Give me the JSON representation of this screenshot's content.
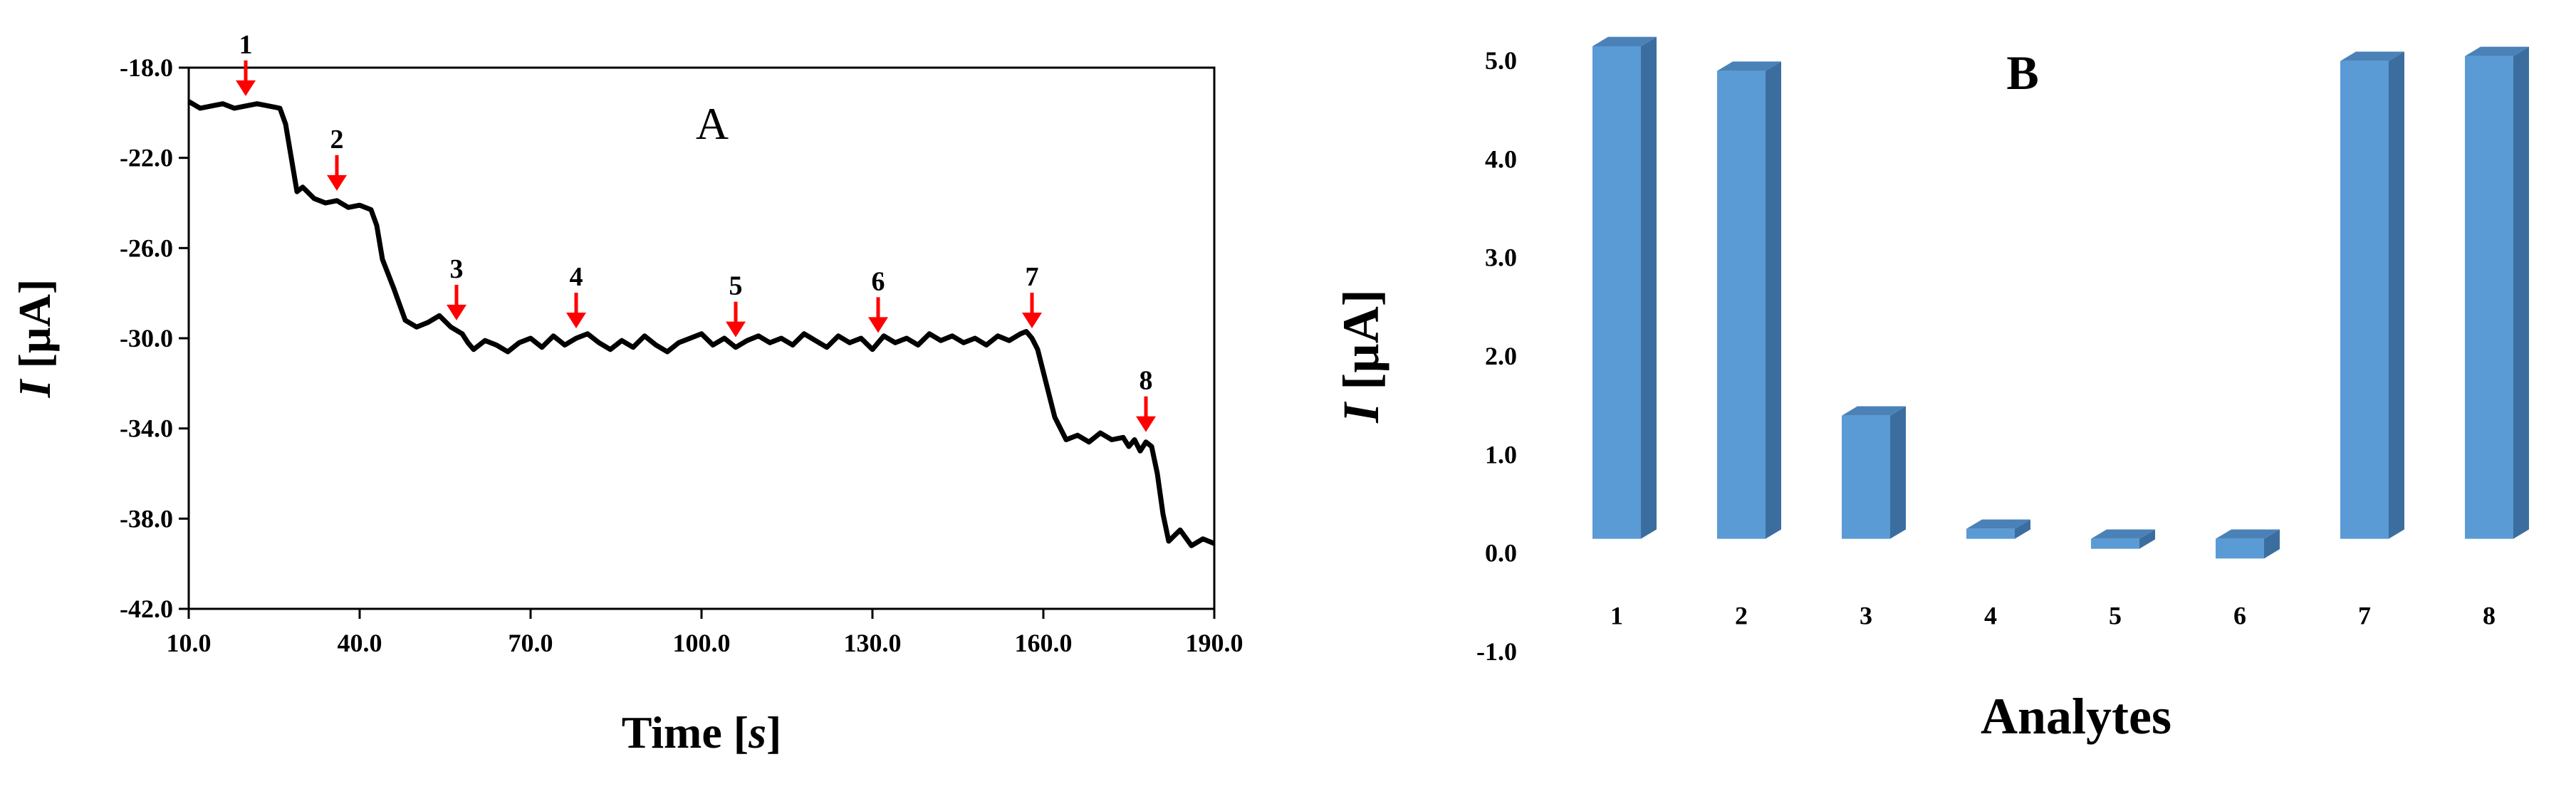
{
  "chart_data": [
    {
      "type": "line",
      "panel_label": "A",
      "xlabel": "Time [",
      "xlabel_italic": "s",
      "xlabel_suffix": "]",
      "ylabel_italic": "I",
      "ylabel": " [µA]",
      "xlim": [
        10,
        190
      ],
      "ylim": [
        -42,
        -18
      ],
      "x_ticks": [
        "10.0",
        "40.0",
        "70.0",
        "100.0",
        "130.0",
        "160.0",
        "190.0"
      ],
      "y_ticks": [
        "-18.0",
        "-22.0",
        "-26.0",
        "-30.0",
        "-34.0",
        "-38.0",
        "-42.0"
      ],
      "series": [
        {
          "color": "#000000",
          "x": [
            10,
            12,
            14,
            16,
            18,
            20,
            22,
            24,
            26,
            27,
            28,
            29,
            30,
            32,
            34,
            36,
            38,
            40,
            42,
            43,
            44,
            46,
            48,
            50,
            52,
            54,
            56,
            58,
            59,
            60,
            62,
            64,
            66,
            68,
            70,
            72,
            74,
            76,
            78,
            80,
            82,
            84,
            86,
            88,
            90,
            92,
            94,
            96,
            98,
            100,
            102,
            104,
            106,
            108,
            110,
            112,
            114,
            116,
            118,
            120,
            122,
            124,
            126,
            128,
            130,
            132,
            134,
            136,
            138,
            140,
            142,
            144,
            146,
            148,
            150,
            152,
            154,
            156,
            157,
            158,
            159,
            160,
            161,
            162,
            164,
            166,
            168,
            170,
            172,
            174,
            175,
            176,
            177,
            178,
            179,
            180,
            181,
            182,
            184,
            186,
            188,
            190
          ],
          "y": [
            -19.5,
            -19.8,
            -19.7,
            -19.6,
            -19.8,
            -19.7,
            -19.6,
            -19.7,
            -19.8,
            -20.5,
            -22.0,
            -23.5,
            -23.3,
            -23.8,
            -24.0,
            -23.9,
            -24.2,
            -24.1,
            -24.3,
            -25.0,
            -26.5,
            -27.8,
            -29.2,
            -29.5,
            -29.3,
            -29.0,
            -29.5,
            -29.8,
            -30.2,
            -30.5,
            -30.1,
            -30.3,
            -30.6,
            -30.2,
            -30.0,
            -30.4,
            -29.9,
            -30.3,
            -30.0,
            -29.8,
            -30.2,
            -30.5,
            -30.1,
            -30.4,
            -29.9,
            -30.3,
            -30.6,
            -30.2,
            -30.0,
            -29.8,
            -30.3,
            -30.0,
            -30.4,
            -30.1,
            -29.9,
            -30.2,
            -30.0,
            -30.3,
            -29.8,
            -30.1,
            -30.4,
            -29.9,
            -30.2,
            -30.0,
            -30.5,
            -29.9,
            -30.2,
            -30.0,
            -30.3,
            -29.8,
            -30.1,
            -29.9,
            -30.2,
            -30.0,
            -30.3,
            -29.9,
            -30.1,
            -29.8,
            -29.7,
            -30.0,
            -30.5,
            -31.5,
            -32.5,
            -33.5,
            -34.5,
            -34.3,
            -34.6,
            -34.2,
            -34.5,
            -34.4,
            -34.8,
            -34.5,
            -35.0,
            -34.6,
            -34.8,
            -36.0,
            -37.8,
            -39.0,
            -38.5,
            -39.2,
            -38.9,
            -39.1
          ]
        }
      ],
      "markers": [
        {
          "label": "1",
          "x": 20
        },
        {
          "label": "2",
          "x": 36
        },
        {
          "label": "3",
          "x": 57
        },
        {
          "label": "4",
          "x": 78
        },
        {
          "label": "5",
          "x": 106
        },
        {
          "label": "6",
          "x": 131
        },
        {
          "label": "7",
          "x": 158
        },
        {
          "label": "8",
          "x": 178
        }
      ],
      "marker_color": "#ff0000",
      "grid": false
    },
    {
      "type": "bar",
      "style": "3d",
      "panel_label": "B",
      "xlabel": "Analytes",
      "ylabel_italic": "I",
      "ylabel": " [µA]",
      "ylim": [
        -1,
        5
      ],
      "y_ticks": [
        "5.0",
        "4.0",
        "3.0",
        "2.0",
        "1.0",
        "0.0",
        "-1.0"
      ],
      "categories": [
        "1",
        "2",
        "3",
        "4",
        "5",
        "6",
        "7",
        "8"
      ],
      "values": [
        5.0,
        4.75,
        1.25,
        0.05,
        -0.1,
        -0.2,
        4.85,
        4.9
      ],
      "bar_color": "#5b9bd5",
      "grid": false
    }
  ]
}
